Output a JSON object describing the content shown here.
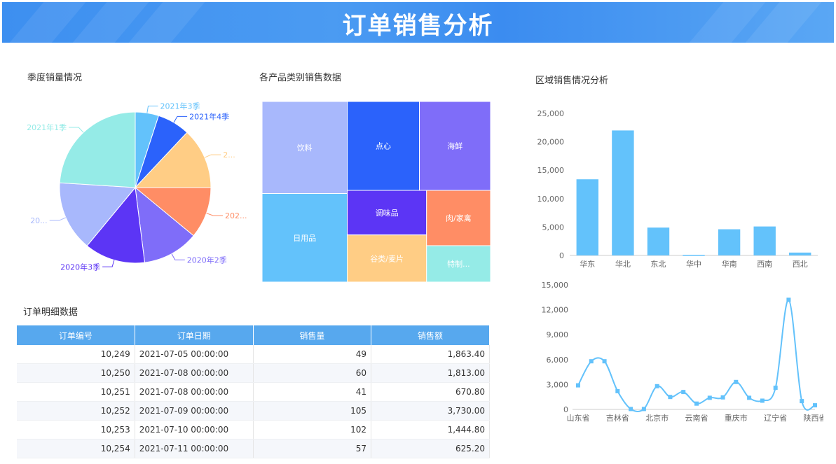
{
  "header": {
    "title": "订单销售分析"
  },
  "pie": {
    "title": "季度销量情况",
    "chart_data": {
      "type": "pie",
      "slices": [
        {
          "label": "2021年3季",
          "value": 5,
          "color": "#63c2fb"
        },
        {
          "label": "2021年4季",
          "value": 7,
          "color": "#2b62fb"
        },
        {
          "label": "2...",
          "value": 13,
          "color": "#ffcd85"
        },
        {
          "label": "202...",
          "value": 11,
          "color": "#ff8d65"
        },
        {
          "label": "2020年2季",
          "value": 12,
          "color": "#7f6df9"
        },
        {
          "label": "2020年3季",
          "value": 13,
          "color": "#5c35f5"
        },
        {
          "label": "20...",
          "value": 15,
          "color": "#a8b8fc"
        },
        {
          "label": "2021年1季",
          "value": 24,
          "color": "#95ebe7"
        }
      ]
    }
  },
  "treemap": {
    "title": "各产品类别销售数据",
    "chart_data": {
      "type": "treemap",
      "items": [
        {
          "label": "饮料",
          "value": 15.5,
          "color": "#a8b8fc"
        },
        {
          "label": "日用品",
          "value": 14.9,
          "color": "#63c2fb"
        },
        {
          "label": "点心",
          "value": 12.7,
          "color": "#2b62fb"
        },
        {
          "label": "海鲜",
          "value": 12.5,
          "color": "#7f6df9"
        },
        {
          "label": "调味品",
          "value": 7.0,
          "color": "#5c35f5"
        },
        {
          "label": "谷类/麦片",
          "value": 7.4,
          "color": "#ffcd85"
        },
        {
          "label": "肉/家禽",
          "value": 7.0,
          "color": "#ff8d65"
        },
        {
          "label": "特制...",
          "value": 4.6,
          "color": "#95ebe7"
        }
      ]
    }
  },
  "region": {
    "title": "区域销售情况分析",
    "chart_data": {
      "type": "bar",
      "categories": [
        "华东",
        "华北",
        "东北",
        "华中",
        "华南",
        "西南",
        "西北"
      ],
      "values": [
        13400,
        22000,
        4900,
        100,
        4600,
        5100,
        500
      ],
      "ylim": [
        0,
        25000
      ],
      "yticks": [
        "0",
        "5,000",
        "10,000",
        "15,000",
        "20,000",
        "25,000"
      ],
      "color": "#63c2fb"
    }
  },
  "province": {
    "chart_data": {
      "type": "line",
      "x": [
        "山东省",
        "",
        "",
        "吉林省",
        "",
        "",
        "北京市",
        "",
        "",
        "云南省",
        "",
        "",
        "重庆市",
        "",
        "",
        "辽宁省",
        "",
        "",
        "陕西省"
      ],
      "values": [
        2900,
        5800,
        5800,
        2200,
        50,
        50,
        2800,
        1500,
        2100,
        700,
        1400,
        1450,
        3300,
        1400,
        1050,
        2600,
        13200,
        1000,
        500
      ],
      "ylim": [
        0,
        15000
      ],
      "yticks": [
        "0",
        "3,000",
        "6,000",
        "9,000",
        "12,000",
        "15,000"
      ],
      "color": "#63c2fb"
    }
  },
  "orders": {
    "title": "订单明细数据",
    "columns": [
      "订单编号",
      "订单日期",
      "销售量",
      "销售额"
    ],
    "rows": [
      [
        "10,249",
        "2021-07-05 00:00:00",
        "49",
        "1,863.40"
      ],
      [
        "10,250",
        "2021-07-08 00:00:00",
        "60",
        "1,813.00"
      ],
      [
        "10,251",
        "2021-07-08 00:00:00",
        "41",
        "670.80"
      ],
      [
        "10,252",
        "2021-07-09 00:00:00",
        "105",
        "3,730.00"
      ],
      [
        "10,253",
        "2021-07-10 00:00:00",
        "102",
        "1,444.80"
      ],
      [
        "10,254",
        "2021-07-11 00:00:00",
        "57",
        "625.20"
      ]
    ]
  }
}
